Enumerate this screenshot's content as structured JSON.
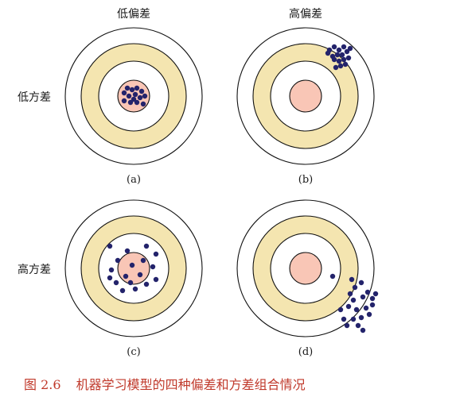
{
  "columns": [
    "低偏差",
    "高偏差"
  ],
  "rows": [
    "低方差",
    "高方差"
  ],
  "panels": [
    {
      "label": "(a)",
      "dots": [
        [
          -12,
          -4
        ],
        [
          -8,
          -10
        ],
        [
          -2,
          -8
        ],
        [
          4,
          -10
        ],
        [
          10,
          -6
        ],
        [
          14,
          0
        ],
        [
          8,
          2
        ],
        [
          2,
          -2
        ],
        [
          -6,
          0
        ],
        [
          -12,
          6
        ],
        [
          -4,
          8
        ],
        [
          4,
          8
        ],
        [
          12,
          10
        ],
        [
          0,
          4
        ]
      ]
    },
    {
      "label": "(b)",
      "dots": [
        [
          30,
          -58
        ],
        [
          36,
          -62
        ],
        [
          42,
          -58
        ],
        [
          48,
          -62
        ],
        [
          52,
          -56
        ],
        [
          46,
          -52
        ],
        [
          40,
          -52
        ],
        [
          34,
          -50
        ],
        [
          28,
          -54
        ],
        [
          54,
          -48
        ],
        [
          48,
          -46
        ],
        [
          42,
          -44
        ],
        [
          36,
          -46
        ],
        [
          50,
          -40
        ],
        [
          44,
          -38
        ],
        [
          38,
          -36
        ],
        [
          56,
          -60
        ]
      ]
    },
    {
      "label": "(c)",
      "dots": [
        [
          -30,
          -28
        ],
        [
          -8,
          -22
        ],
        [
          16,
          -28
        ],
        [
          28,
          -18
        ],
        [
          -20,
          -10
        ],
        [
          -2,
          -4
        ],
        [
          12,
          -10
        ],
        [
          24,
          -2
        ],
        [
          -28,
          2
        ],
        [
          -10,
          10
        ],
        [
          8,
          8
        ],
        [
          -4,
          18
        ],
        [
          -22,
          18
        ],
        [
          16,
          20
        ],
        [
          28,
          14
        ],
        [
          2,
          26
        ],
        [
          -30,
          12
        ],
        [
          -14,
          28
        ]
      ]
    },
    {
      "label": "(d)",
      "dots": [
        [
          34,
          10
        ],
        [
          58,
          14
        ],
        [
          70,
          18
        ],
        [
          62,
          24
        ],
        [
          78,
          30
        ],
        [
          84,
          38
        ],
        [
          72,
          36
        ],
        [
          60,
          40
        ],
        [
          54,
          48
        ],
        [
          64,
          52
        ],
        [
          76,
          50
        ],
        [
          84,
          46
        ],
        [
          44,
          52
        ],
        [
          48,
          64
        ],
        [
          60,
          64
        ],
        [
          70,
          62
        ],
        [
          80,
          58
        ],
        [
          66,
          72
        ],
        [
          52,
          72
        ],
        [
          72,
          78
        ],
        [
          88,
          32
        ],
        [
          56,
          32
        ]
      ]
    }
  ],
  "caption": {
    "prefix": "图 2.6",
    "text": "机器学习模型的四种偏差和方差组合情况"
  },
  "colors": {
    "outer_fill": "#ffffff",
    "ring_fill": "#f4e5b0",
    "inner_fill": "#ffffff",
    "center_fill": "#f9c6b6",
    "stroke": "#111111",
    "dot": "#23236b",
    "caption": "#c0392b"
  }
}
